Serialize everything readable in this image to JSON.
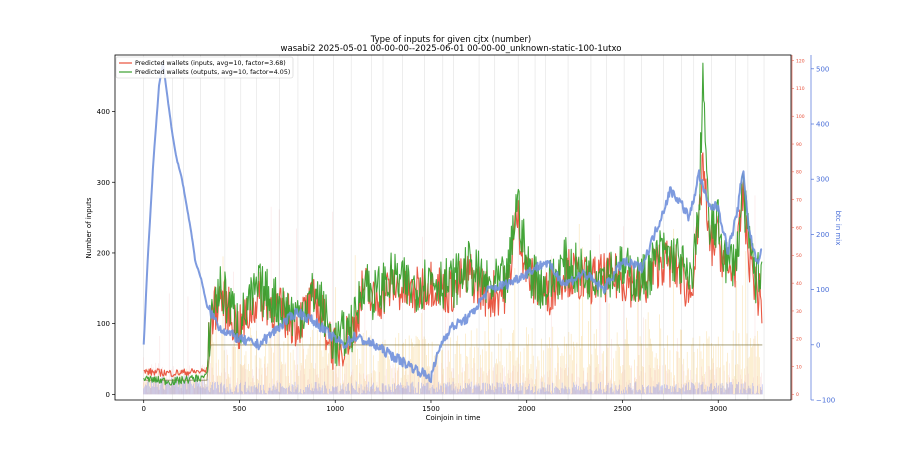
{
  "chart_data": {
    "type": "line",
    "title": "Type of inputs for given cjtx (number)",
    "subtitle": "wasabi2 2025-05-01 00-00-00--2025-06-01 00-00-00_unknown-static-100-1utxo",
    "xlabel": "Coinjoin in time",
    "ylabel": "Number of inputs",
    "y2label": "btc in mix",
    "xlim": [
      -150,
      3380
    ],
    "ylim": [
      -8,
      480
    ],
    "y2lim": [
      -100,
      525
    ],
    "y3lim": [
      -2,
      122
    ],
    "xticks": [
      0,
      500,
      1000,
      1500,
      2000,
      2500,
      3000
    ],
    "yticks": [
      0,
      100,
      200,
      300,
      400
    ],
    "y2ticks": [
      -100,
      0,
      100,
      200,
      300,
      400,
      500
    ],
    "y3ticks": [
      0,
      10,
      20,
      30,
      40,
      50,
      60,
      70,
      80,
      90,
      100,
      110,
      120
    ],
    "grid": false,
    "legend_position": "top-left",
    "colors": {
      "inputs": "#e8503a",
      "outputs": "#3aa02e",
      "btc": "#7090dc",
      "amber": "#f5c35a",
      "blue_bars": "#8a96f0",
      "pink": "#f2a0a0",
      "vline": "#c8c8c8",
      "olive": "#6b6020"
    },
    "series": [
      {
        "name": "Predicted wallets (inputs, avg=10, factor=3.68)",
        "axis": "left",
        "x": [
          0,
          150,
          330,
          350,
          400,
          500,
          600,
          700,
          800,
          900,
          1000,
          1100,
          1150,
          1200,
          1300,
          1400,
          1500,
          1600,
          1700,
          1800,
          1900,
          1950,
          2000,
          2100,
          2200,
          2300,
          2400,
          2500,
          2600,
          2700,
          2800,
          2850,
          2900,
          2920,
          2950,
          3000,
          3050,
          3100,
          3130,
          3150,
          3200,
          3230
        ],
        "y": [
          32,
          30,
          33,
          105,
          140,
          90,
          140,
          120,
          100,
          135,
          60,
          95,
          155,
          130,
          155,
          140,
          160,
          145,
          170,
          140,
          150,
          255,
          170,
          140,
          175,
          160,
          165,
          165,
          150,
          190,
          175,
          140,
          230,
          340,
          210,
          220,
          170,
          190,
          290,
          210,
          150,
          125
        ]
      },
      {
        "name": "Predicted wallets (outputs, avg=10, factor=4.05)",
        "axis": "left",
        "x": [
          0,
          150,
          330,
          350,
          400,
          500,
          600,
          700,
          800,
          900,
          1000,
          1100,
          1150,
          1200,
          1300,
          1400,
          1500,
          1600,
          1700,
          1800,
          1900,
          1950,
          2000,
          2100,
          2200,
          2300,
          2400,
          2500,
          2600,
          2700,
          2800,
          2850,
          2900,
          2920,
          2950,
          3000,
          3050,
          3100,
          3130,
          3150,
          3200,
          3230
        ],
        "y": [
          22,
          18,
          25,
          115,
          150,
          100,
          150,
          130,
          110,
          145,
          70,
          100,
          165,
          140,
          165,
          150,
          165,
          155,
          180,
          150,
          160,
          280,
          180,
          150,
          185,
          170,
          175,
          175,
          160,
          200,
          190,
          150,
          250,
          460,
          230,
          240,
          180,
          200,
          300,
          230,
          160,
          185
        ]
      },
      {
        "name": "btc in mix",
        "axis": "right",
        "x": [
          0,
          20,
          50,
          80,
          100,
          120,
          150,
          170,
          200,
          230,
          250,
          270,
          300,
          330,
          400,
          500,
          600,
          700,
          800,
          900,
          1000,
          1050,
          1100,
          1200,
          1300,
          1400,
          1450,
          1500,
          1550,
          1600,
          1700,
          1800,
          1900,
          2000,
          2100,
          2200,
          2300,
          2400,
          2500,
          2600,
          2700,
          2750,
          2800,
          2850,
          2900,
          2950,
          3000,
          3050,
          3100,
          3130,
          3160,
          3200,
          3230
        ],
        "y": [
          0,
          150,
          330,
          470,
          510,
          460,
          380,
          340,
          300,
          240,
          200,
          150,
          120,
          70,
          30,
          10,
          0,
          30,
          60,
          40,
          10,
          0,
          15,
          0,
          -20,
          -40,
          -50,
          -60,
          0,
          30,
          50,
          100,
          110,
          130,
          150,
          110,
          130,
          100,
          150,
          140,
          230,
          280,
          260,
          230,
          310,
          250,
          250,
          170,
          240,
          320,
          210,
          150,
          170
        ]
      },
      {
        "name": "",
        "axis": "left",
        "style": "stepped wallets",
        "x": [
          0,
          330,
          350,
          3230
        ],
        "y": [
          20,
          20,
          70,
          70
        ]
      }
    ]
  }
}
